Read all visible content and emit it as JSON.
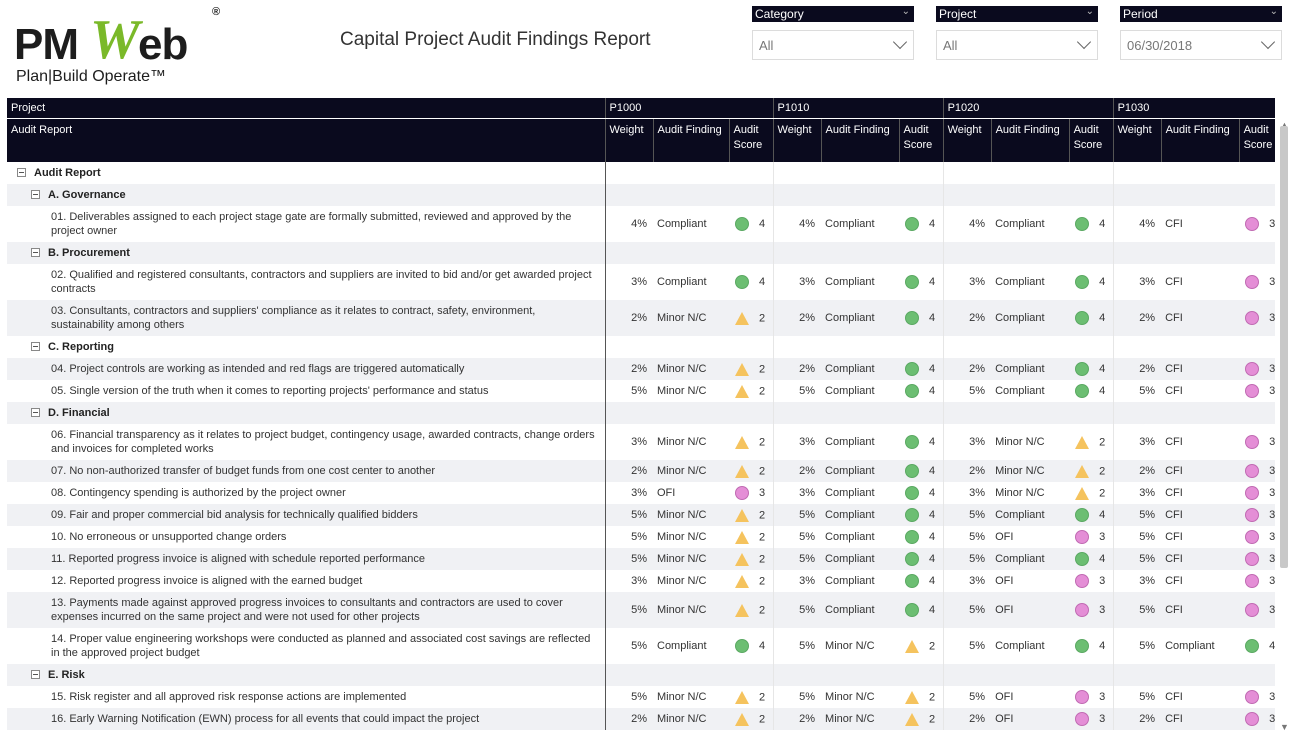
{
  "logo": {
    "pm": "PM",
    "w": "W",
    "eb": "eb",
    "reg": "®",
    "tagline": "Plan|Build Operate™"
  },
  "title": "Capital Project Audit Findings Report",
  "slicers": [
    {
      "label": "Category",
      "value": "All"
    },
    {
      "label": "Project",
      "value": "All"
    },
    {
      "label": "Period",
      "value": "06/30/2018"
    }
  ],
  "table": {
    "header_project": "Project",
    "header_audit_report": "Audit Report",
    "projects": [
      "P1000",
      "P1010",
      "P1020",
      "P1030"
    ],
    "col_weight": "Weight",
    "col_finding": "Audit Finding",
    "col_score_1": "Audit",
    "col_score_2": "Score",
    "root": "Audit Report",
    "rows": [
      {
        "type": "group",
        "label": "A. Governance"
      },
      {
        "type": "item",
        "label": "01.  Deliverables assigned to each project stage gate are formally submitted, reviewed and approved by the project owner",
        "tall": true,
        "cells": [
          [
            "4%",
            "Compliant",
            "green",
            "4"
          ],
          [
            "4%",
            "Compliant",
            "green",
            "4"
          ],
          [
            "4%",
            "Compliant",
            "green",
            "4"
          ],
          [
            "4%",
            "CFI",
            "pink",
            "3"
          ]
        ]
      },
      {
        "type": "group",
        "label": "B. Procurement"
      },
      {
        "type": "item",
        "label": "02.  Qualified and registered consultants, contractors and suppliers are invited to bid and/or get awarded project contracts",
        "tall": true,
        "cells": [
          [
            "3%",
            "Compliant",
            "green",
            "4"
          ],
          [
            "3%",
            "Compliant",
            "green",
            "4"
          ],
          [
            "3%",
            "Compliant",
            "green",
            "4"
          ],
          [
            "3%",
            "CFI",
            "pink",
            "3"
          ]
        ]
      },
      {
        "type": "item",
        "label": "03.  Consultants, contractors and suppliers' compliance as it relates to contract, safety, environment, sustainability among others",
        "tall": true,
        "cells": [
          [
            "2%",
            "Minor N/C",
            "tri",
            "2"
          ],
          [
            "2%",
            "Compliant",
            "green",
            "4"
          ],
          [
            "2%",
            "Compliant",
            "green",
            "4"
          ],
          [
            "2%",
            "CFI",
            "pink",
            "3"
          ]
        ]
      },
      {
        "type": "group",
        "label": "C. Reporting"
      },
      {
        "type": "item",
        "label": "04.  Project controls are working as intended and red flags are triggered automatically",
        "cells": [
          [
            "2%",
            "Minor N/C",
            "tri",
            "2"
          ],
          [
            "2%",
            "Compliant",
            "green",
            "4"
          ],
          [
            "2%",
            "Compliant",
            "green",
            "4"
          ],
          [
            "2%",
            "CFI",
            "pink",
            "3"
          ]
        ]
      },
      {
        "type": "item",
        "label": "05.  Single version of the truth when it comes to reporting projects' performance and status",
        "cells": [
          [
            "5%",
            "Minor N/C",
            "tri",
            "2"
          ],
          [
            "5%",
            "Compliant",
            "green",
            "4"
          ],
          [
            "5%",
            "Compliant",
            "green",
            "4"
          ],
          [
            "5%",
            "CFI",
            "pink",
            "3"
          ]
        ]
      },
      {
        "type": "group",
        "label": "D. Financial"
      },
      {
        "type": "item",
        "label": "06.  Financial transparency as it relates to project budget, contingency usage, awarded contracts, change orders and invoices for completed works",
        "tall": true,
        "cells": [
          [
            "3%",
            "Minor N/C",
            "tri",
            "2"
          ],
          [
            "3%",
            "Compliant",
            "green",
            "4"
          ],
          [
            "3%",
            "Minor N/C",
            "tri",
            "2"
          ],
          [
            "3%",
            "CFI",
            "pink",
            "3"
          ]
        ]
      },
      {
        "type": "item",
        "label": "07.  No non-authorized transfer of budget funds from one cost center to another",
        "cells": [
          [
            "2%",
            "Minor N/C",
            "tri",
            "2"
          ],
          [
            "2%",
            "Compliant",
            "green",
            "4"
          ],
          [
            "2%",
            "Minor N/C",
            "tri",
            "2"
          ],
          [
            "2%",
            "CFI",
            "pink",
            "3"
          ]
        ]
      },
      {
        "type": "item",
        "label": "08.  Contingency spending is authorized by the project owner",
        "cells": [
          [
            "3%",
            "OFI",
            "pink",
            "3"
          ],
          [
            "3%",
            "Compliant",
            "green",
            "4"
          ],
          [
            "3%",
            "Minor N/C",
            "tri",
            "2"
          ],
          [
            "3%",
            "CFI",
            "pink",
            "3"
          ]
        ]
      },
      {
        "type": "item",
        "label": "09.  Fair and proper commercial bid analysis for technically qualified bidders",
        "cells": [
          [
            "5%",
            "Minor N/C",
            "tri",
            "2"
          ],
          [
            "5%",
            "Compliant",
            "green",
            "4"
          ],
          [
            "5%",
            "Compliant",
            "green",
            "4"
          ],
          [
            "5%",
            "CFI",
            "pink",
            "3"
          ]
        ]
      },
      {
        "type": "item",
        "label": "10.  No erroneous or unsupported change orders",
        "cells": [
          [
            "5%",
            "Minor N/C",
            "tri",
            "2"
          ],
          [
            "5%",
            "Compliant",
            "green",
            "4"
          ],
          [
            "5%",
            "OFI",
            "pink",
            "3"
          ],
          [
            "5%",
            "CFI",
            "pink",
            "3"
          ]
        ]
      },
      {
        "type": "item",
        "label": "11.  Reported progress invoice is aligned with schedule reported performance",
        "cells": [
          [
            "5%",
            "Minor N/C",
            "tri",
            "2"
          ],
          [
            "5%",
            "Compliant",
            "green",
            "4"
          ],
          [
            "5%",
            "Compliant",
            "green",
            "4"
          ],
          [
            "5%",
            "CFI",
            "pink",
            "3"
          ]
        ]
      },
      {
        "type": "item",
        "label": "12.  Reported progress invoice is aligned with the earned budget",
        "cells": [
          [
            "3%",
            "Minor N/C",
            "tri",
            "2"
          ],
          [
            "3%",
            "Compliant",
            "green",
            "4"
          ],
          [
            "3%",
            "OFI",
            "pink",
            "3"
          ],
          [
            "3%",
            "CFI",
            "pink",
            "3"
          ]
        ]
      },
      {
        "type": "item",
        "label": "13.  Payments made against approved progress invoices to consultants and contractors are used to cover expenses incurred on the same project and were not used for other projects",
        "tall": true,
        "cells": [
          [
            "5%",
            "Minor N/C",
            "tri",
            "2"
          ],
          [
            "5%",
            "Compliant",
            "green",
            "4"
          ],
          [
            "5%",
            "OFI",
            "pink",
            "3"
          ],
          [
            "5%",
            "CFI",
            "pink",
            "3"
          ]
        ]
      },
      {
        "type": "item",
        "label": "14.  Proper value engineering workshops were conducted as planned and associated cost savings are reflected in the approved project budget",
        "tall": true,
        "cells": [
          [
            "5%",
            "Compliant",
            "green",
            "4"
          ],
          [
            "5%",
            "Minor N/C",
            "tri",
            "2"
          ],
          [
            "5%",
            "Compliant",
            "green",
            "4"
          ],
          [
            "5%",
            "Compliant",
            "green",
            "4"
          ]
        ]
      },
      {
        "type": "group",
        "label": "E. Risk"
      },
      {
        "type": "item",
        "label": "15.  Risk register and all approved risk response actions are implemented",
        "cells": [
          [
            "5%",
            "Minor N/C",
            "tri",
            "2"
          ],
          [
            "5%",
            "Minor N/C",
            "tri",
            "2"
          ],
          [
            "5%",
            "OFI",
            "pink",
            "3"
          ],
          [
            "5%",
            "CFI",
            "pink",
            "3"
          ]
        ]
      },
      {
        "type": "item",
        "label": "16.  Early Warning Notification (EWN) process for all events that could impact the project",
        "cells": [
          [
            "2%",
            "Minor N/C",
            "tri",
            "2"
          ],
          [
            "2%",
            "Minor N/C",
            "tri",
            "2"
          ],
          [
            "2%",
            "OFI",
            "pink",
            "3"
          ],
          [
            "2%",
            "CFI",
            "pink",
            "3"
          ]
        ]
      }
    ]
  },
  "colors": {
    "header_bg": "#0a0a1e",
    "green": "#6cbe72",
    "pink": "#e48ed6",
    "yellow": "#f5c35e",
    "brand_green": "#7ab929"
  }
}
